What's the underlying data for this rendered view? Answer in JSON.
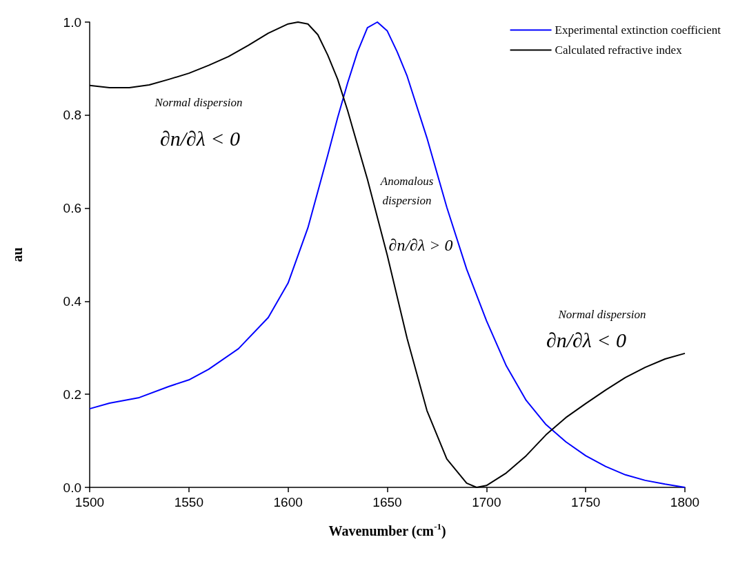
{
  "chart_data": {
    "type": "line",
    "xlabel": "Wavenumber (cm$^{-1}$)",
    "ylabel": "au",
    "xlim": [
      1500,
      1800
    ],
    "xticks": [
      1500,
      1550,
      1600,
      1650,
      1700,
      1750,
      1800
    ],
    "ylim": [
      0,
      1
    ],
    "yticks": [
      {
        "value": 0,
        "label": "0.0"
      },
      {
        "value": 0.2,
        "label": "0.2"
      },
      {
        "value": 0.4,
        "label": "0.4"
      },
      {
        "value": 0.6,
        "label": "0.6"
      },
      {
        "value": 0.8,
        "label": "0.8"
      },
      {
        "value": 1,
        "label": "1.0"
      }
    ],
    "grid": false,
    "legend": "top right",
    "marker": "none",
    "line_style": "solid",
    "series": [
      {
        "name": "Experimental extinction coefficient",
        "color": "#0000ff",
        "x": [
          1500,
          1510,
          1525,
          1540,
          1550,
          1560,
          1575,
          1590,
          1600,
          1610,
          1620,
          1625,
          1630,
          1635,
          1640,
          1645,
          1650,
          1655,
          1660,
          1670,
          1680,
          1690,
          1700,
          1710,
          1720,
          1730,
          1740,
          1750,
          1760,
          1770,
          1780,
          1790,
          1800
        ],
        "values": [
          0.169,
          0.181,
          0.193,
          0.217,
          0.231,
          0.254,
          0.298,
          0.365,
          0.439,
          0.558,
          0.714,
          0.795,
          0.869,
          0.936,
          0.988,
          1.0,
          0.981,
          0.936,
          0.884,
          0.751,
          0.602,
          0.469,
          0.358,
          0.261,
          0.187,
          0.135,
          0.098,
          0.068,
          0.045,
          0.027,
          0.015,
          0.007,
          0.0
        ]
      },
      {
        "name": "Calculated refractive index",
        "color": "#000000",
        "x": [
          1500,
          1510,
          1520,
          1530,
          1540,
          1550,
          1560,
          1570,
          1580,
          1590,
          1600,
          1605,
          1610,
          1615,
          1620,
          1625,
          1630,
          1640,
          1650,
          1660,
          1670,
          1680,
          1690,
          1695,
          1700,
          1710,
          1720,
          1730,
          1740,
          1750,
          1760,
          1770,
          1780,
          1790,
          1800
        ],
        "values": [
          0.864,
          0.859,
          0.859,
          0.865,
          0.877,
          0.89,
          0.907,
          0.926,
          0.95,
          0.976,
          0.996,
          1.0,
          0.996,
          0.973,
          0.929,
          0.877,
          0.81,
          0.662,
          0.499,
          0.32,
          0.165,
          0.061,
          0.009,
          0.0,
          0.004,
          0.031,
          0.068,
          0.113,
          0.15,
          0.18,
          0.209,
          0.236,
          0.258,
          0.276,
          0.288
        ]
      }
    ],
    "annotations": [
      "Normal dispersion",
      "∂n/∂λ < 0",
      "Anomalous",
      "dispersion",
      "∂n/∂λ > 0",
      "Normal dispersion",
      "∂n/∂λ < 0"
    ]
  }
}
